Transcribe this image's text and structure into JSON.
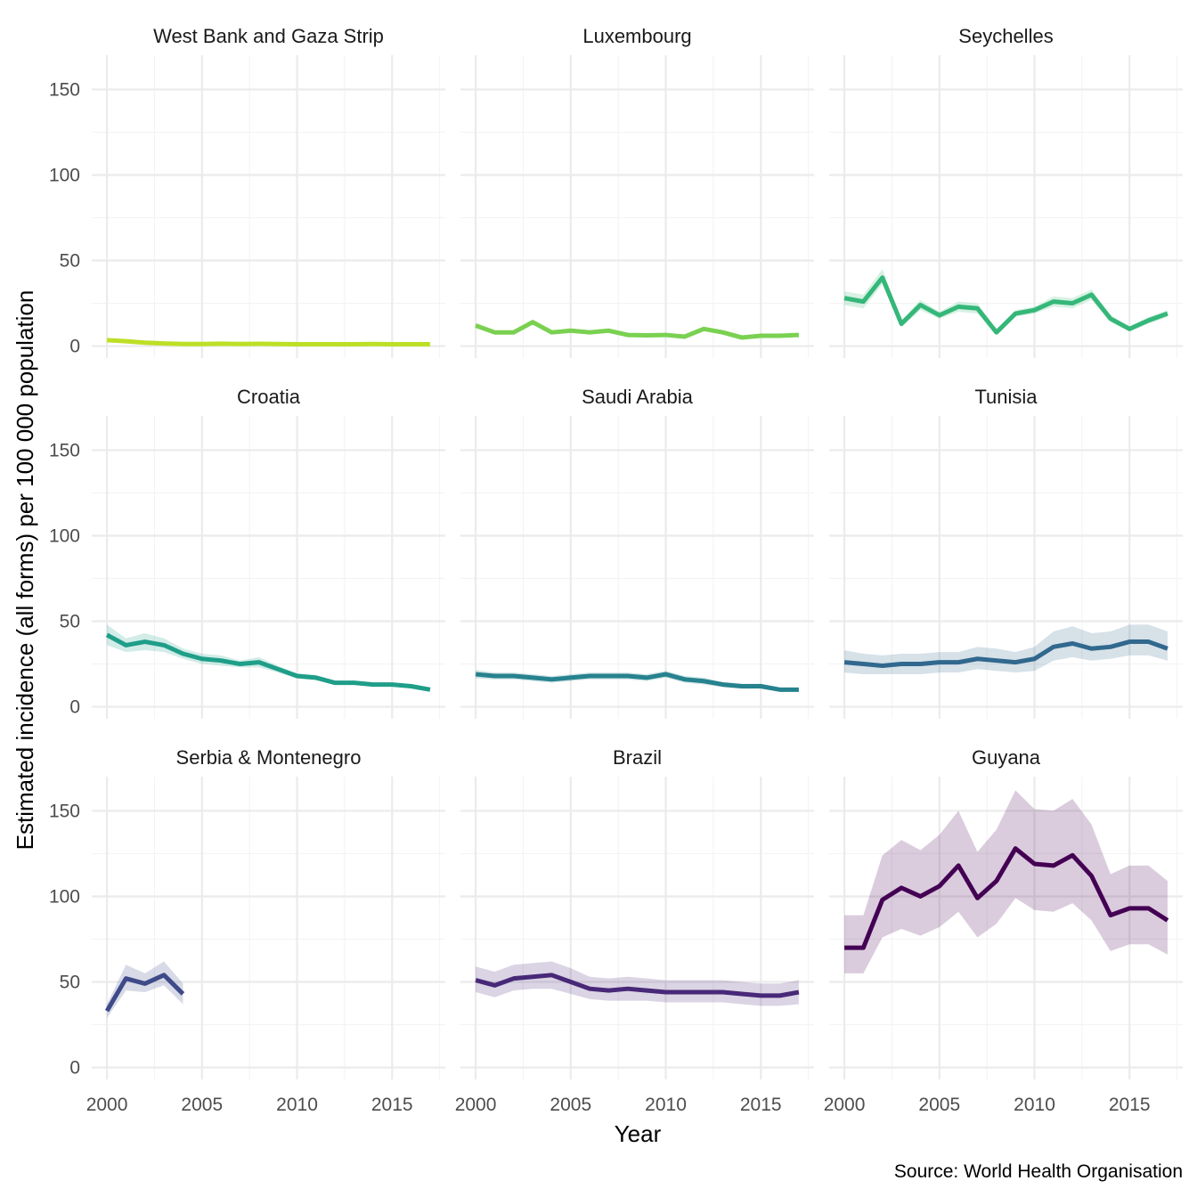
{
  "chart_data": {
    "type": "line",
    "layout": "facet-grid-3x3",
    "xlabel": "Year",
    "ylabel": "Estimated incidence (all forms) per 100 000 population",
    "caption": "Source: World Health Organisation",
    "xlim": [
      1999.2,
      2017.8
    ],
    "ylim": [
      -7,
      170
    ],
    "x_ticks": [
      2000,
      2005,
      2010,
      2015
    ],
    "y_ticks": [
      0,
      50,
      100,
      150
    ],
    "grid": true,
    "legend": "none",
    "band": "confidence interval (ribbon)",
    "panels": [
      {
        "name": "West Bank and Gaza Strip",
        "color": "#bddf26",
        "x": [
          2000,
          2001,
          2002,
          2003,
          2004,
          2005,
          2006,
          2007,
          2008,
          2009,
          2010,
          2011,
          2012,
          2013,
          2014,
          2015,
          2016,
          2017
        ],
        "y": [
          3.5,
          2.8,
          2,
          1.5,
          1.2,
          1.2,
          1.4,
          1.2,
          1.3,
          1.2,
          1.1,
          1.1,
          1.1,
          1.1,
          1.2,
          1.1,
          1.1,
          1.1
        ],
        "lo": [
          3,
          2.4,
          1.7,
          1.3,
          1,
          1,
          1.2,
          1,
          1.1,
          1,
          0.9,
          0.9,
          0.9,
          0.9,
          1,
          0.9,
          0.9,
          0.9
        ],
        "hi": [
          4,
          3.2,
          2.3,
          1.7,
          1.4,
          1.4,
          1.6,
          1.4,
          1.5,
          1.4,
          1.3,
          1.3,
          1.3,
          1.3,
          1.4,
          1.3,
          1.3,
          1.3
        ]
      },
      {
        "name": "Luxembourg",
        "color": "#7ad151",
        "x": [
          2000,
          2001,
          2002,
          2003,
          2004,
          2005,
          2006,
          2007,
          2008,
          2009,
          2010,
          2011,
          2012,
          2013,
          2014,
          2015,
          2016,
          2017
        ],
        "y": [
          12,
          8,
          8,
          14,
          8,
          9,
          8,
          9,
          6.5,
          6.3,
          6.5,
          5.5,
          10,
          8,
          5,
          6,
          6,
          6.5
        ],
        "lo": [
          10.5,
          7,
          7,
          12.5,
          7,
          8,
          7,
          8,
          5.7,
          5.5,
          5.7,
          4.8,
          8.8,
          7,
          4.4,
          5.2,
          5.2,
          5.7
        ],
        "hi": [
          13.5,
          9,
          9,
          15.5,
          9,
          10,
          9,
          10,
          7.3,
          7.1,
          7.3,
          6.2,
          11.2,
          9,
          5.6,
          6.8,
          6.8,
          7.3
        ]
      },
      {
        "name": "Seychelles",
        "color": "#35b779",
        "x": [
          2000,
          2001,
          2002,
          2003,
          2004,
          2005,
          2006,
          2007,
          2008,
          2009,
          2010,
          2011,
          2012,
          2013,
          2014,
          2015,
          2016,
          2017
        ],
        "y": [
          28,
          26,
          40,
          13,
          24,
          18,
          23,
          22,
          8,
          19,
          21,
          26,
          25,
          30,
          16,
          10,
          15,
          19
        ],
        "lo": [
          24,
          22,
          36,
          11,
          21,
          16,
          20,
          19,
          6.5,
          17,
          19,
          23,
          22,
          27,
          14,
          8.5,
          13,
          17
        ],
        "hi": [
          32,
          30,
          45,
          15,
          27,
          20,
          26,
          25,
          9.5,
          21,
          23,
          29,
          28,
          33,
          18,
          11.5,
          17,
          21
        ]
      },
      {
        "name": "Croatia",
        "color": "#1f9e89",
        "x": [
          2000,
          2001,
          2002,
          2003,
          2004,
          2005,
          2006,
          2007,
          2008,
          2009,
          2010,
          2011,
          2012,
          2013,
          2014,
          2015,
          2016,
          2017
        ],
        "y": [
          42,
          36,
          38,
          36,
          31,
          28,
          27,
          25,
          26,
          22,
          18,
          17,
          14,
          14,
          13,
          13,
          12,
          10
        ],
        "lo": [
          36,
          32,
          33,
          32,
          28,
          25,
          24,
          23,
          23,
          20,
          16.5,
          15.5,
          13,
          13,
          12,
          12,
          11,
          9
        ],
        "hi": [
          48,
          40,
          43,
          40,
          34,
          31,
          30,
          27,
          29,
          24,
          19.5,
          18.5,
          15,
          15,
          14,
          14,
          13,
          11
        ]
      },
      {
        "name": "Saudi Arabia",
        "color": "#26828e",
        "x": [
          2000,
          2001,
          2002,
          2003,
          2004,
          2005,
          2006,
          2007,
          2008,
          2009,
          2010,
          2011,
          2012,
          2013,
          2014,
          2015,
          2016,
          2017
        ],
        "y": [
          19,
          18,
          18,
          17,
          16,
          17,
          18,
          18,
          18,
          17,
          19,
          16,
          15,
          13,
          12,
          12,
          10,
          10
        ],
        "lo": [
          16.5,
          16,
          16,
          15,
          14,
          15,
          16,
          16,
          16,
          15,
          17,
          14,
          13,
          11.5,
          10.5,
          10.5,
          8.8,
          8.8
        ],
        "hi": [
          21.5,
          20,
          20,
          19,
          18,
          19,
          20,
          20,
          20,
          19,
          21,
          18,
          17,
          14.5,
          13.5,
          13.5,
          11.2,
          11.2
        ]
      },
      {
        "name": "Tunisia",
        "color": "#31688e",
        "x": [
          2000,
          2001,
          2002,
          2003,
          2004,
          2005,
          2006,
          2007,
          2008,
          2009,
          2010,
          2011,
          2012,
          2013,
          2014,
          2015,
          2016,
          2017
        ],
        "y": [
          26,
          25,
          24,
          25,
          25,
          26,
          26,
          28,
          27,
          26,
          28,
          35,
          37,
          34,
          35,
          38,
          38,
          34
        ],
        "lo": [
          20,
          19,
          19,
          19,
          19,
          20,
          20,
          22,
          21,
          20,
          21,
          27,
          29,
          27,
          28,
          30,
          30,
          27
        ],
        "hi": [
          33,
          31,
          30,
          31,
          31,
          32,
          32,
          35,
          34,
          32,
          35,
          44,
          47,
          43,
          44,
          48,
          48,
          44
        ]
      },
      {
        "name": "Serbia & Montenegro",
        "color": "#3e4a89",
        "x": [
          2000,
          2001,
          2002,
          2003,
          2004
        ],
        "y": [
          33,
          52,
          49,
          54,
          43
        ],
        "lo": [
          29,
          45,
          44,
          48,
          37
        ],
        "hi": [
          37,
          60,
          55,
          62,
          49
        ]
      },
      {
        "name": "Brazil",
        "color": "#482878",
        "x": [
          2000,
          2001,
          2002,
          2003,
          2004,
          2005,
          2006,
          2007,
          2008,
          2009,
          2010,
          2011,
          2012,
          2013,
          2014,
          2015,
          2016,
          2017
        ],
        "y": [
          51,
          48,
          52,
          53,
          54,
          50,
          46,
          45,
          46,
          45,
          44,
          44,
          44,
          44,
          43,
          42,
          42,
          44
        ],
        "lo": [
          44,
          41,
          45,
          46,
          46,
          43,
          40,
          39,
          39,
          39,
          38,
          38,
          38,
          38,
          37,
          36,
          36,
          37
        ],
        "hi": [
          59,
          56,
          60,
          61,
          62,
          58,
          53,
          52,
          53,
          52,
          51,
          51,
          51,
          51,
          50,
          49,
          49,
          51
        ]
      },
      {
        "name": "Guyana",
        "color": "#440154",
        "x": [
          2000,
          2001,
          2002,
          2003,
          2004,
          2005,
          2006,
          2007,
          2008,
          2009,
          2010,
          2011,
          2012,
          2013,
          2014,
          2015,
          2016,
          2017
        ],
        "y": [
          70,
          70,
          98,
          105,
          100,
          106,
          118,
          99,
          109,
          128,
          119,
          118,
          124,
          112,
          89,
          93,
          93,
          86
        ],
        "lo": [
          55,
          55,
          76,
          81,
          77,
          82,
          91,
          76,
          84,
          99,
          92,
          91,
          96,
          86,
          68,
          72,
          72,
          66
        ],
        "hi": [
          89,
          89,
          124,
          133,
          127,
          136,
          150,
          126,
          139,
          162,
          151,
          150,
          157,
          142,
          113,
          118,
          118,
          109
        ]
      }
    ]
  }
}
